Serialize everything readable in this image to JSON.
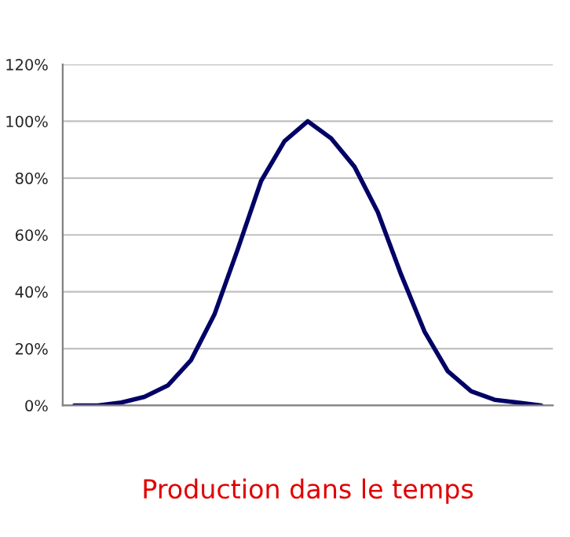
{
  "chart_data": {
    "type": "line",
    "xlabel": "Production dans le temps",
    "categories": [
      null,
      null,
      null,
      null,
      null,
      null,
      null,
      null,
      null,
      null,
      null,
      null,
      null,
      null,
      null,
      null,
      null,
      null,
      null,
      null,
      null
    ],
    "series": [
      {
        "color": "#000066",
        "values": [
          0,
          0,
          1,
          3,
          7,
          16,
          32,
          55,
          79,
          93,
          100,
          94,
          84,
          68,
          46,
          26,
          12,
          5,
          2,
          1,
          0
        ]
      }
    ],
    "ylim": [
      0,
      120
    ],
    "yticks": [
      {
        "value": 0,
        "label": "0%"
      },
      {
        "value": 20,
        "label": "20%"
      },
      {
        "value": 40,
        "label": "40%"
      },
      {
        "value": 60,
        "label": "60%"
      },
      {
        "value": 80,
        "label": "80%"
      },
      {
        "value": 100,
        "label": "100%"
      },
      {
        "value": 120,
        "label": "120%"
      }
    ],
    "grid": "y",
    "line_style": "solid",
    "marker": "none"
  }
}
